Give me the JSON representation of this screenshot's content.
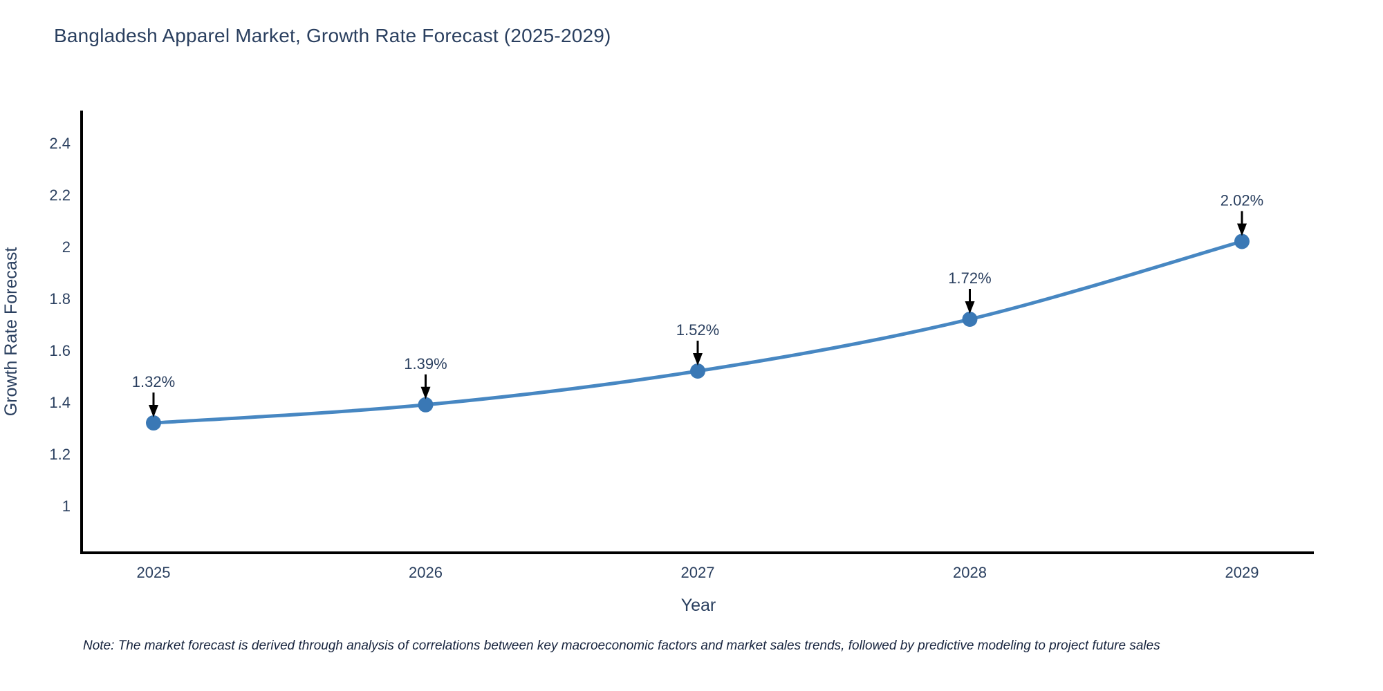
{
  "page": {
    "note": "Note: The market forecast is derived through analysis of correlations between key macroeconomic factors and market sales trends, followed by predictive modeling to project future sales"
  },
  "chart_data": {
    "type": "line",
    "title": "Bangladesh Apparel Market, Growth Rate Forecast (2025-2029)",
    "xlabel": "Year",
    "ylabel": "Growth Rate Forecast",
    "categories": [
      "2025",
      "2026",
      "2027",
      "2028",
      "2029"
    ],
    "values": [
      1.32,
      1.39,
      1.52,
      1.72,
      2.02
    ],
    "point_labels": [
      "1.32%",
      "1.39%",
      "1.52%",
      "1.72%",
      "2.02%"
    ],
    "yticks": [
      "2.4",
      "2.2",
      "2",
      "1.8",
      "1.6",
      "1.4",
      "1.2",
      "1"
    ],
    "ytick_values": [
      2.4,
      2.2,
      2.0,
      1.8,
      1.6,
      1.4,
      1.2,
      1.0
    ],
    "ylim": [
      0.819,
      2.525
    ],
    "grid": false,
    "legend": false,
    "line_shape": "spline",
    "annotation_style": "label-with-down-arrow",
    "colors": {
      "line": "#4787c2",
      "marker": "#3a78b5",
      "arrow": "#000000",
      "axis_line": "#000000",
      "tick_text": "#2a3f5f",
      "title_text": "#2a3f5f"
    }
  }
}
